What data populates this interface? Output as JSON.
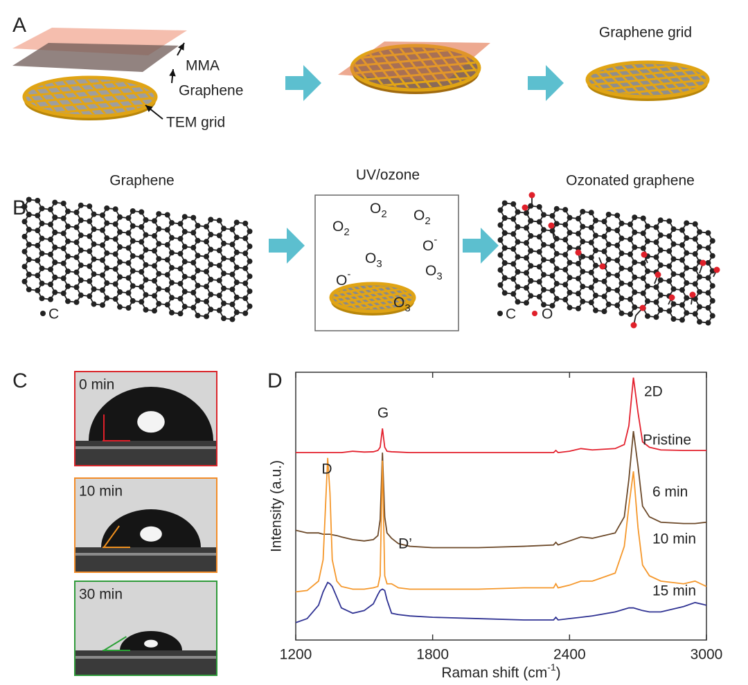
{
  "panel_a": {
    "label": "A",
    "labels": [
      "MMA",
      "Graphene",
      "TEM grid"
    ],
    "result": "Graphene grid"
  },
  "panel_b": {
    "label": "B",
    "titles": [
      "Graphene",
      "UV/ozone",
      "Ozonated graphene"
    ],
    "molecules": [
      {
        "text": "O",
        "sub": "2"
      },
      {
        "text": "O",
        "sub": "2"
      },
      {
        "text": "O",
        "sub": "2"
      },
      {
        "text": "O",
        "sub": "3"
      },
      {
        "text": "O",
        "sub": "3"
      },
      {
        "text": "O",
        "sub": "3"
      },
      {
        "text": "O",
        "sup": "-"
      },
      {
        "text": "O",
        "sup": "-"
      }
    ],
    "legend_left": "C",
    "legend_right": [
      "C",
      "O"
    ]
  },
  "panel_c": {
    "label": "C",
    "times": [
      "0 min",
      "10 min",
      "30 min"
    ]
  },
  "chart_data": {
    "type": "line",
    "panel_label": "D",
    "xlabel": {
      "text": "Raman shift (cm",
      "sup": "-1",
      "end": ")"
    },
    "ylabel": "Intensity (a.u.)",
    "xlim": [
      1200,
      3000
    ],
    "xticks": [
      1200,
      1800,
      2400,
      3000
    ],
    "ylim": [
      0,
      100
    ],
    "x": [
      1200,
      1250,
      1300,
      1320,
      1340,
      1350,
      1360,
      1380,
      1400,
      1450,
      1500,
      1540,
      1560,
      1570,
      1580,
      1590,
      1600,
      1620,
      1650,
      1700,
      1800,
      2000,
      2200,
      2330,
      2340,
      2350,
      2400,
      2450,
      2500,
      2600,
      2640,
      2660,
      2680,
      2700,
      2720,
      2750,
      2800,
      2900,
      2950,
      3000
    ],
    "series": [
      {
        "name": "Pristine",
        "color": "#e3202d",
        "values": [
          70,
          70,
          70,
          70,
          70,
          70,
          70,
          70,
          70,
          70.5,
          70.2,
          70.3,
          70.8,
          72,
          79,
          72,
          70.5,
          70.3,
          70.2,
          70,
          70,
          70,
          70,
          70,
          70.8,
          70,
          70.5,
          71.5,
          71,
          71.5,
          73,
          80,
          98,
          85,
          74,
          72,
          71,
          70.8,
          70.8,
          70.8
        ]
      },
      {
        "name": "6 min",
        "color": "#6b4828",
        "values": [
          41,
          40,
          40,
          39.5,
          39.5,
          39.5,
          39.3,
          39,
          38.5,
          37.5,
          37,
          37.5,
          39,
          45,
          70,
          46,
          40,
          38,
          36,
          35,
          34.5,
          34.5,
          35,
          35.5,
          36.5,
          35.5,
          37,
          38.5,
          38,
          40,
          46,
          60,
          78,
          65,
          50,
          46,
          44,
          43.5,
          43.5,
          44
        ]
      },
      {
        "name": "10 min",
        "color": "#f5972a",
        "values": [
          18,
          18.5,
          22,
          30,
          68,
          55,
          30,
          22,
          20,
          19,
          19,
          19.5,
          20,
          24,
          67,
          24,
          21,
          21,
          19.5,
          19,
          19,
          19,
          19.5,
          19.5,
          21,
          19.5,
          20.5,
          22,
          22,
          25,
          35,
          50,
          63,
          42,
          28,
          24,
          22,
          21,
          22,
          20
        ]
      },
      {
        "name": "15 min",
        "color": "#2e3192",
        "values": [
          6.5,
          8,
          13,
          18,
          21.5,
          21,
          20,
          16,
          12,
          10,
          11,
          13.5,
          17,
          18.5,
          19,
          18.5,
          15,
          10,
          9.5,
          9,
          8.5,
          8,
          7.5,
          7.5,
          8.5,
          7.5,
          8,
          8.5,
          9,
          10.5,
          11.5,
          12,
          12,
          11.5,
          11,
          10.5,
          10.5,
          12.5,
          14,
          13
        ]
      }
    ],
    "annotations": [
      "G",
      "2D",
      "D",
      "D’"
    ]
  }
}
